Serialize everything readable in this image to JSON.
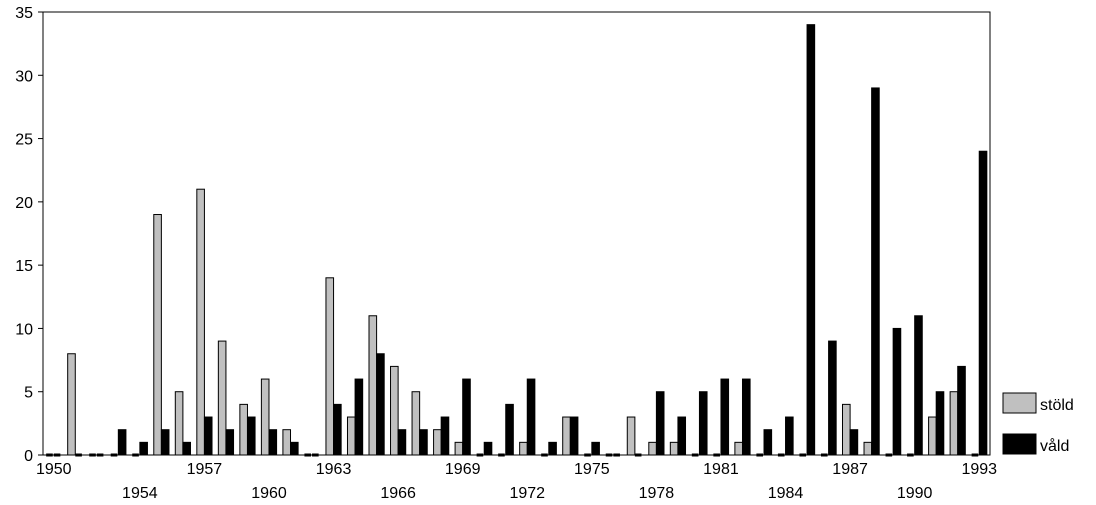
{
  "chart_data": {
    "type": "bar",
    "title": "",
    "xlabel": "",
    "ylabel": "",
    "ylim": [
      0,
      35
    ],
    "yticks": [
      0,
      5,
      10,
      15,
      20,
      25,
      30,
      35
    ],
    "grid": false,
    "legend_position": "bottom-right",
    "categories": [
      "1950",
      "1951",
      "1952",
      "1953",
      "1954",
      "1955",
      "1956",
      "1957",
      "1958",
      "1959",
      "1960",
      "1961",
      "1962",
      "1963",
      "1964",
      "1965",
      "1966",
      "1967",
      "1968",
      "1969",
      "1970",
      "1971",
      "1972",
      "1973",
      "1974",
      "1975",
      "1976",
      "1977",
      "1978",
      "1979",
      "1980",
      "1981",
      "1982",
      "1983",
      "1984",
      "1985",
      "1986",
      "1987",
      "1988",
      "1989",
      "1990",
      "1991",
      "1992",
      "1993"
    ],
    "tick_labels_row1": [
      "1950",
      "1957",
      "1963",
      "1969",
      "1975",
      "1981",
      "1987",
      "1993"
    ],
    "tick_labels_row2": [
      "1954",
      "1960",
      "1966",
      "1972",
      "1978",
      "1984",
      "1990"
    ],
    "series": [
      {
        "name": "stöld",
        "color": "#c0c0c0",
        "values": [
          0,
          8,
          0,
          0,
          0,
          19,
          5,
          21,
          9,
          4,
          6,
          2,
          0,
          14,
          3,
          11,
          7,
          5,
          2,
          1,
          0,
          0,
          1,
          0,
          3,
          0,
          0,
          3,
          1,
          1,
          0,
          0,
          1,
          0,
          0,
          0,
          0,
          4,
          1,
          0,
          0,
          3,
          5,
          0
        ]
      },
      {
        "name": "våld",
        "color": "#000000",
        "values": [
          0,
          0,
          0,
          2,
          1,
          2,
          1,
          3,
          2,
          3,
          2,
          1,
          0,
          4,
          6,
          8,
          2,
          2,
          3,
          6,
          1,
          4,
          6,
          1,
          3,
          1,
          0,
          0,
          5,
          3,
          5,
          6,
          6,
          2,
          3,
          34,
          9,
          2,
          29,
          10,
          11,
          5,
          7,
          24
        ]
      }
    ]
  }
}
